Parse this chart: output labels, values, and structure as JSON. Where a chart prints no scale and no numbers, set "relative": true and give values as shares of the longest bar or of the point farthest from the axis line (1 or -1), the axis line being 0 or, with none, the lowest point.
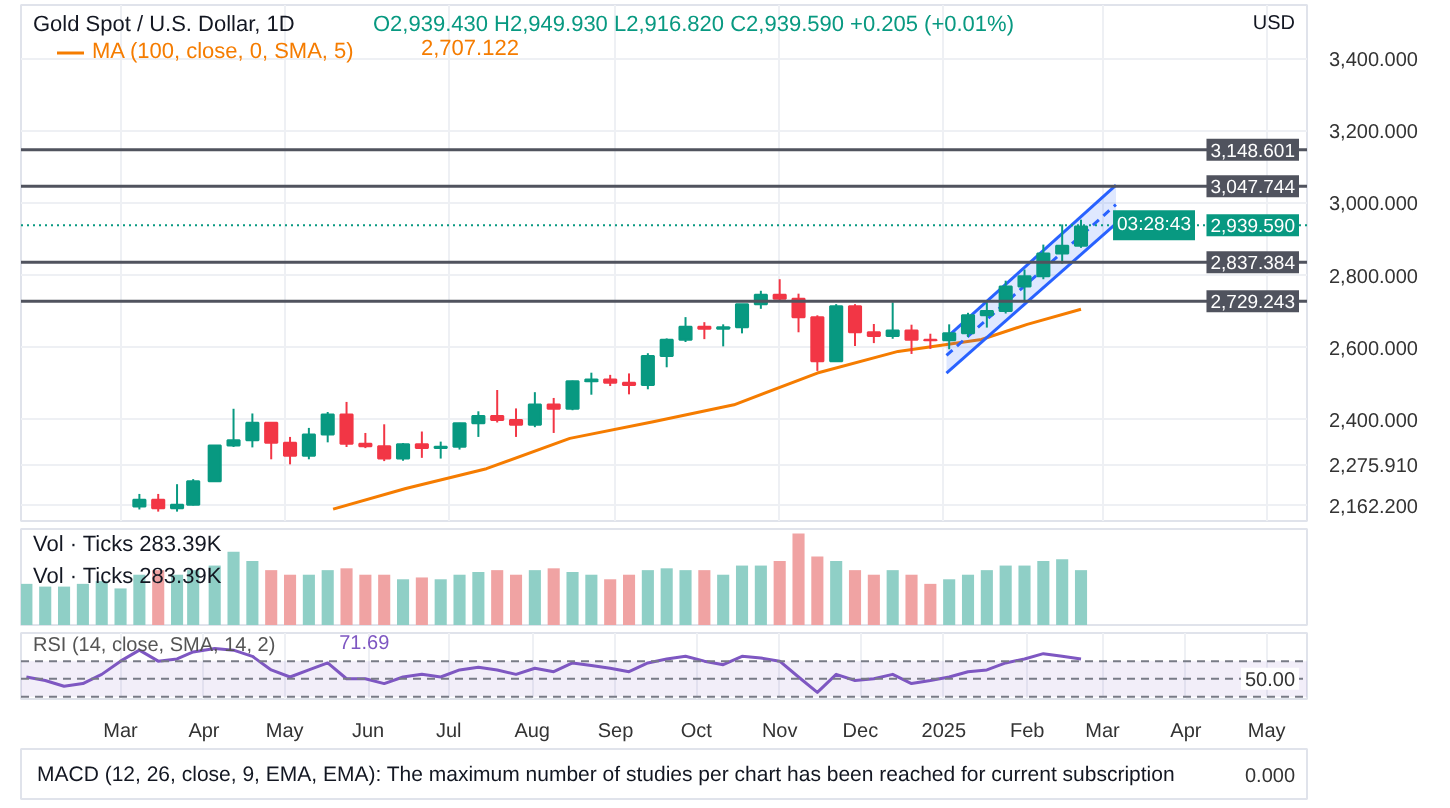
{
  "chart_data": [
    {
      "type": "candlestick",
      "title": "Gold Spot / U.S. Dollar, 1D",
      "subtitle": "O2,939.430 H2,949.930 L2,916.820 C2,939.590 +0.205 (+0.01%)",
      "ylabel": "USD",
      "x": [
        "2024-03-08",
        "2024-03-15",
        "2024-03-22",
        "2024-03-28",
        "2024-04-05",
        "2024-04-12",
        "2024-04-19",
        "2024-04-26",
        "2024-05-03",
        "2024-05-10",
        "2024-05-17",
        "2024-05-24",
        "2024-05-31",
        "2024-06-07",
        "2024-06-14",
        "2024-06-21",
        "2024-06-28",
        "2024-07-05",
        "2024-07-12",
        "2024-07-19",
        "2024-07-26",
        "2024-08-02",
        "2024-08-09",
        "2024-08-16",
        "2024-08-23",
        "2024-08-30",
        "2024-09-06",
        "2024-09-13",
        "2024-09-20",
        "2024-09-27",
        "2024-10-04",
        "2024-10-11",
        "2024-10-18",
        "2024-10-25",
        "2024-11-01",
        "2024-11-08",
        "2024-11-15",
        "2024-11-22",
        "2024-11-29",
        "2024-12-06",
        "2024-12-13",
        "2024-12-20",
        "2024-12-27",
        "2025-01-03",
        "2025-01-10",
        "2025-01-17",
        "2025-01-24",
        "2025-01-31",
        "2025-02-07",
        "2025-02-14",
        "2025-02-21"
      ],
      "ohlc": [
        [
          2160,
          2195,
          2152,
          2179
        ],
        [
          2179,
          2195,
          2146,
          2155
        ],
        [
          2155,
          2222,
          2146,
          2165
        ],
        [
          2165,
          2236,
          2163,
          2230
        ],
        [
          2230,
          2330,
          2228,
          2329
        ],
        [
          2329,
          2431,
          2325,
          2344
        ],
        [
          2344,
          2418,
          2324,
          2392
        ],
        [
          2392,
          2393,
          2291,
          2337
        ],
        [
          2337,
          2353,
          2277,
          2301
        ],
        [
          2301,
          2378,
          2291,
          2360
        ],
        [
          2360,
          2422,
          2338,
          2415
        ],
        [
          2415,
          2450,
          2325,
          2334
        ],
        [
          2334,
          2364,
          2322,
          2327
        ],
        [
          2327,
          2388,
          2286,
          2293
        ],
        [
          2293,
          2336,
          2287,
          2333
        ],
        [
          2333,
          2368,
          2295,
          2322
        ],
        [
          2322,
          2340,
          2293,
          2326
        ],
        [
          2326,
          2392,
          2318,
          2391
        ],
        [
          2391,
          2424,
          2353,
          2411
        ],
        [
          2411,
          2483,
          2393,
          2400
        ],
        [
          2400,
          2432,
          2353,
          2387
        ],
        [
          2387,
          2477,
          2380,
          2443
        ],
        [
          2443,
          2461,
          2364,
          2431
        ],
        [
          2431,
          2509,
          2427,
          2507
        ],
        [
          2507,
          2531,
          2470,
          2512
        ],
        [
          2512,
          2525,
          2494,
          2503
        ],
        [
          2503,
          2529,
          2471,
          2497
        ],
        [
          2497,
          2585,
          2485,
          2577
        ],
        [
          2577,
          2626,
          2546,
          2622
        ],
        [
          2622,
          2685,
          2616,
          2658
        ],
        [
          2658,
          2671,
          2624,
          2653
        ],
        [
          2653,
          2665,
          2604,
          2657
        ],
        [
          2657,
          2721,
          2640,
          2721
        ],
        [
          2721,
          2758,
          2708,
          2747
        ],
        [
          2747,
          2790,
          2728,
          2736
        ],
        [
          2736,
          2750,
          2643,
          2685
        ],
        [
          2685,
          2690,
          2536,
          2563
        ],
        [
          2563,
          2721,
          2563,
          2715
        ],
        [
          2715,
          2721,
          2605,
          2643
        ],
        [
          2643,
          2666,
          2613,
          2633
        ],
        [
          2633,
          2726,
          2625,
          2648
        ],
        [
          2648,
          2664,
          2583,
          2622
        ],
        [
          2622,
          2639,
          2597,
          2621
        ],
        [
          2621,
          2665,
          2596,
          2640
        ],
        [
          2640,
          2697,
          2630,
          2690
        ],
        [
          2690,
          2725,
          2656,
          2702
        ],
        [
          2702,
          2786,
          2695,
          2770
        ],
        [
          2770,
          2817,
          2730,
          2798
        ],
        [
          2798,
          2886,
          2790,
          2861
        ],
        [
          2861,
          2942,
          2833,
          2883
        ],
        [
          2883,
          2955,
          2877,
          2936
        ]
      ],
      "colors": [
        "#089981",
        "#f23645",
        "#089981",
        "#089981",
        "#089981",
        "#089981",
        "#089981",
        "#f23645",
        "#f23645",
        "#089981",
        "#089981",
        "#f23645",
        "#f23645",
        "#f23645",
        "#089981",
        "#f23645",
        "#089981",
        "#089981",
        "#089981",
        "#f23645",
        "#f23645",
        "#089981",
        "#f23645",
        "#089981",
        "#089981",
        "#f23645",
        "#f23645",
        "#089981",
        "#089981",
        "#089981",
        "#f23645",
        "#089981",
        "#089981",
        "#089981",
        "#f23645",
        "#f23645",
        "#f23645",
        "#089981",
        "#f23645",
        "#f23645",
        "#089981",
        "#f23645",
        "#f23645",
        "#089981",
        "#089981",
        "#089981",
        "#089981",
        "#089981",
        "#089981",
        "#089981",
        "#089981"
      ],
      "series": [
        {
          "type": "line",
          "name": "MA (100, close, 0, SMA, 5)",
          "color": "#f57c00",
          "x": [
            "2024-05-19",
            "2024-06-15",
            "2024-07-15",
            "2024-08-15",
            "2024-09-15",
            "2024-10-15",
            "2024-11-15",
            "2024-12-15",
            "2025-01-15",
            "2025-02-01",
            "2025-02-21"
          ],
          "values": [
            2153,
            2210,
            2265,
            2349,
            2395,
            2442,
            2530,
            2590,
            2623,
            2665,
            2707
          ]
        },
        {
          "type": "line",
          "color": "#2962ff",
          "x": [
            "2025-01-02",
            "2025-03-06"
          ],
          "values": [
            2530,
            2944
          ]
        },
        {
          "type": "line",
          "color": "#2962ff",
          "x": [
            "2025-01-02",
            "2025-03-06"
          ],
          "values": [
            2628,
            3051
          ]
        },
        {
          "type": "line",
          "color": "#2962ff",
          "line_style": "dashed",
          "x": [
            "2025-01-02",
            "2025-03-06"
          ],
          "values": [
            2579,
            2997
          ],
          "lower": [
            2530,
            2944
          ],
          "upper": [
            2628,
            3051
          ]
        }
      ],
      "annotations": [
        "2,707.122",
        "03:28:43"
      ],
      "ref_lines": [
        {
          "axis": "y",
          "value": 3148.601,
          "label": "3,148.601",
          "color": "#50535e"
        },
        {
          "axis": "y",
          "value": 3047.744,
          "label": "3,047.744",
          "color": "#50535e"
        },
        {
          "axis": "y",
          "value": 2837.384,
          "label": "2,837.384",
          "color": "#50535e"
        },
        {
          "axis": "y",
          "value": 2729.243,
          "label": "2,729.243",
          "color": "#50535e"
        },
        {
          "axis": "y",
          "value": 2939.59,
          "label": "2,939.590",
          "color": "#089981",
          "line_style": "dotted"
        }
      ],
      "xlim": [
        "2024-01-24",
        "2025-05-16"
      ],
      "ylim": [
        2120,
        3550
      ],
      "yticks": [
        {
          "value": 2162.2,
          "label": "2,162.200"
        },
        {
          "value": 2275.91,
          "label": "2,275.910"
        },
        {
          "value": 2400,
          "label": "2,400.000"
        },
        {
          "value": 2600,
          "label": "2,600.000"
        },
        {
          "value": 2800,
          "label": "2,800.000"
        },
        {
          "value": 3000,
          "label": "3,000.000"
        },
        {
          "value": 3200,
          "label": "3,200.000"
        },
        {
          "value": 3400,
          "label": "3,400.000"
        }
      ],
      "grid": true,
      "tick_labels": "y",
      "legend": "top left"
    },
    {
      "type": "bar",
      "relative": true,
      "annotations": [
        "Vol · Ticks 283.39K",
        "Vol · Ticks 283.39K"
      ],
      "x": [
        "2024-01-26",
        "2024-02-02",
        "2024-02-09",
        "2024-02-16",
        "2024-02-23",
        "2024-03-01",
        "2024-03-08",
        "2024-03-15",
        "2024-03-22",
        "2024-03-28",
        "2024-04-05",
        "2024-04-12",
        "2024-04-19",
        "2024-04-26",
        "2024-05-03",
        "2024-05-10",
        "2024-05-17",
        "2024-05-24",
        "2024-05-31",
        "2024-06-07",
        "2024-06-14",
        "2024-06-21",
        "2024-06-28",
        "2024-07-05",
        "2024-07-12",
        "2024-07-19",
        "2024-07-26",
        "2024-08-02",
        "2024-08-09",
        "2024-08-16",
        "2024-08-23",
        "2024-08-30",
        "2024-09-06",
        "2024-09-13",
        "2024-09-20",
        "2024-09-27",
        "2024-10-04",
        "2024-10-11",
        "2024-10-18",
        "2024-10-25",
        "2024-11-01",
        "2024-11-08",
        "2024-11-15",
        "2024-11-22",
        "2024-11-29",
        "2024-12-06",
        "2024-12-13",
        "2024-12-20",
        "2024-12-27",
        "2025-01-03",
        "2025-01-10",
        "2025-01-17",
        "2025-01-24",
        "2025-01-31",
        "2025-02-07",
        "2025-02-14",
        "2025-02-21"
      ],
      "values": [
        0.45,
        0.42,
        0.42,
        0.45,
        0.48,
        0.4,
        0.55,
        0.6,
        0.55,
        0.6,
        0.65,
        0.8,
        0.7,
        0.6,
        0.55,
        0.55,
        0.6,
        0.62,
        0.55,
        0.55,
        0.5,
        0.52,
        0.5,
        0.55,
        0.58,
        0.6,
        0.55,
        0.6,
        0.62,
        0.58,
        0.55,
        0.5,
        0.55,
        0.6,
        0.62,
        0.6,
        0.6,
        0.55,
        0.65,
        0.65,
        0.7,
        1.0,
        0.75,
        0.7,
        0.6,
        0.55,
        0.6,
        0.55,
        0.45,
        0.5,
        0.55,
        0.6,
        0.65,
        0.65,
        0.7,
        0.72,
        0.6
      ],
      "colors": [
        "#8fcfc6",
        "#8fcfc6",
        "#8fcfc6",
        "#8fcfc6",
        "#8fcfc6",
        "#8fcfc6",
        "#8fcfc6",
        "#f0a3a3",
        "#8fcfc6",
        "#8fcfc6",
        "#8fcfc6",
        "#8fcfc6",
        "#8fcfc6",
        "#f0a3a3",
        "#f0a3a3",
        "#8fcfc6",
        "#8fcfc6",
        "#f0a3a3",
        "#f0a3a3",
        "#f0a3a3",
        "#8fcfc6",
        "#f0a3a3",
        "#8fcfc6",
        "#8fcfc6",
        "#8fcfc6",
        "#f0a3a3",
        "#f0a3a3",
        "#8fcfc6",
        "#f0a3a3",
        "#8fcfc6",
        "#8fcfc6",
        "#f0a3a3",
        "#f0a3a3",
        "#8fcfc6",
        "#8fcfc6",
        "#8fcfc6",
        "#f0a3a3",
        "#8fcfc6",
        "#8fcfc6",
        "#8fcfc6",
        "#f0a3a3",
        "#f0a3a3",
        "#f0a3a3",
        "#8fcfc6",
        "#f0a3a3",
        "#f0a3a3",
        "#8fcfc6",
        "#f0a3a3",
        "#f0a3a3",
        "#8fcfc6",
        "#8fcfc6",
        "#8fcfc6",
        "#8fcfc6",
        "#8fcfc6",
        "#8fcfc6",
        "#8fcfc6",
        "#8fcfc6"
      ],
      "xlim": [
        "2024-01-24",
        "2025-05-16"
      ],
      "tick_labels": false
    },
    {
      "type": "line",
      "relative": true,
      "title": "RSI (14, close, SMA, 14, 2)",
      "annotations": [
        "71.69",
        {
          "text": "50.00",
          "y": 0.31
        }
      ],
      "series": [
        {
          "color": "#7e57c2",
          "x": [
            "2024-01-26",
            "2024-02-02",
            "2024-02-09",
            "2024-02-16",
            "2024-02-23",
            "2024-03-01",
            "2024-03-08",
            "2024-03-15",
            "2024-03-22",
            "2024-03-28",
            "2024-04-05",
            "2024-04-12",
            "2024-04-19",
            "2024-04-26",
            "2024-05-03",
            "2024-05-10",
            "2024-05-17",
            "2024-05-24",
            "2024-05-31",
            "2024-06-07",
            "2024-06-14",
            "2024-06-21",
            "2024-06-28",
            "2024-07-05",
            "2024-07-12",
            "2024-07-19",
            "2024-07-26",
            "2024-08-02",
            "2024-08-09",
            "2024-08-16",
            "2024-08-23",
            "2024-08-30",
            "2024-09-06",
            "2024-09-13",
            "2024-09-20",
            "2024-09-27",
            "2024-10-04",
            "2024-10-11",
            "2024-10-18",
            "2024-10-25",
            "2024-11-01",
            "2024-11-08",
            "2024-11-15",
            "2024-11-22",
            "2024-11-29",
            "2024-12-06",
            "2024-12-13",
            "2024-12-20",
            "2024-12-27",
            "2025-01-03",
            "2025-01-10",
            "2025-01-17",
            "2025-01-24",
            "2025-01-31",
            "2025-02-07",
            "2025-02-14",
            "2025-02-21"
          ],
          "values": [
            0.35,
            0.27,
            0.14,
            0.2,
            0.41,
            0.71,
            0.96,
            0.71,
            0.76,
            0.92,
            1,
            0.96,
            0.82,
            0.51,
            0.35,
            0.51,
            0.67,
            0.31,
            0.31,
            0.2,
            0.35,
            0.41,
            0.35,
            0.51,
            0.57,
            0.51,
            0.41,
            0.55,
            0.47,
            0.67,
            0.61,
            0.55,
            0.47,
            0.67,
            0.76,
            0.82,
            0.71,
            0.63,
            0.82,
            0.78,
            0.71,
            0.35,
            0,
            0.41,
            0.27,
            0.31,
            0.41,
            0.2,
            0.27,
            0.35,
            0.47,
            0.51,
            0.67,
            0.76,
            0.88,
            0.82,
            0.76
          ]
        }
      ],
      "bands": [
        {
          "axis": "y",
          "from": -0.1,
          "to": 0.71,
          "color": "#7e57c2"
        }
      ],
      "ref_lines": [
        {
          "axis": "y",
          "value": 0.71,
          "color": "#787b86",
          "line_style": "dashed"
        },
        {
          "axis": "y",
          "value": 0.31,
          "color": "#787b86",
          "line_style": "dashed"
        },
        {
          "axis": "y",
          "value": -0.1,
          "color": "#787b86",
          "line_style": "dashed"
        }
      ],
      "xlim": [
        "2024-01-24",
        "2025-05-16"
      ],
      "xticks": [
        {
          "value": "2024-03-01",
          "label": "Mar"
        },
        {
          "value": "2024-04-01",
          "label": "Apr"
        },
        {
          "value": "2024-05-01",
          "label": "May"
        },
        {
          "value": "2024-06-01",
          "label": "Jun"
        },
        {
          "value": "2024-07-01",
          "label": "Jul"
        },
        {
          "value": "2024-08-01",
          "label": "Aug"
        },
        {
          "value": "2024-09-01",
          "label": "Sep"
        },
        {
          "value": "2024-10-01",
          "label": "Oct"
        },
        {
          "value": "2024-11-01",
          "label": "Nov"
        },
        {
          "value": "2024-12-01",
          "label": "Dec"
        },
        {
          "value": "2025-01-01",
          "label": "2025"
        },
        {
          "value": "2025-02-01",
          "label": "Feb"
        },
        {
          "value": "2025-03-01",
          "label": "Mar"
        },
        {
          "value": "2025-04-01",
          "label": "Apr"
        },
        {
          "value": "2025-05-01",
          "label": "May"
        }
      ],
      "grid": "x"
    },
    {
      "type": "other",
      "title": "MACD (12, 26, close, 9, EMA, EMA): The maximum number of studies per chart has been reached for current subscription",
      "annotations": [
        "0.000"
      ]
    }
  ]
}
